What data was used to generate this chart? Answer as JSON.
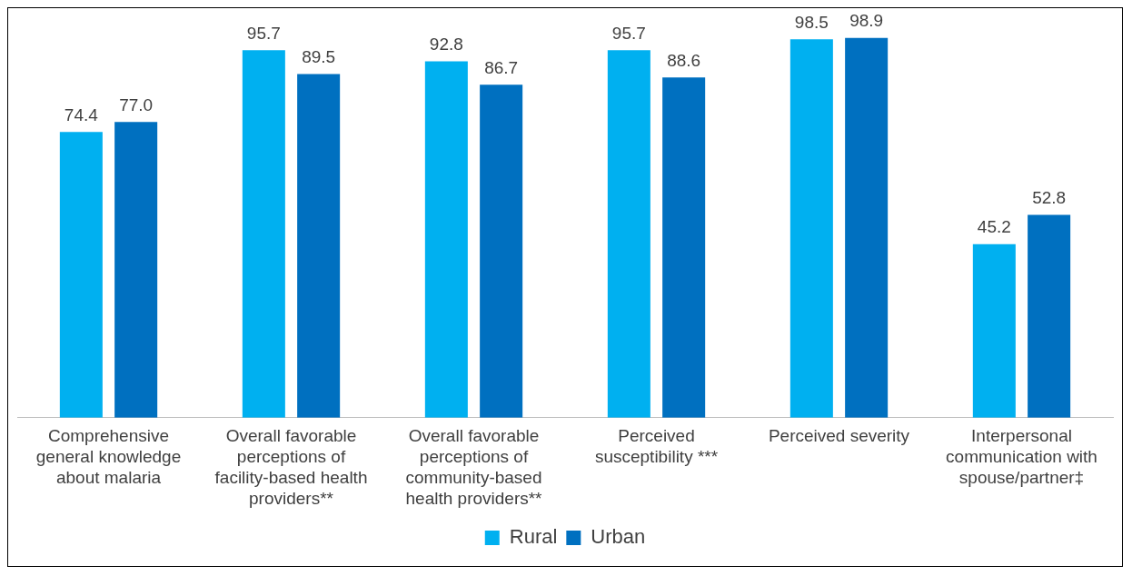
{
  "chart_data": {
    "type": "bar",
    "categories": [
      "Comprehensive general knowledge about malaria",
      "Overall favorable perceptions of facility-based health providers**",
      "Overall favorable perceptions of community-based health providers**",
      "Perceived susceptibility ***",
      "Perceived severity",
      "Interpersonal communication with spouse/partner‡"
    ],
    "series": [
      {
        "name": "Rural",
        "color": "#00b0f0",
        "values": [
          74.4,
          95.7,
          92.8,
          95.7,
          98.5,
          45.2
        ],
        "value_labels": [
          "74.4",
          "95.7",
          "92.8",
          "95.7",
          "98.5",
          "45.2"
        ]
      },
      {
        "name": "Urban",
        "color": "#0070c0",
        "values": [
          77.0,
          89.5,
          86.7,
          88.6,
          98.9,
          52.8
        ],
        "value_labels": [
          "77.0",
          "89.5",
          "86.7",
          "88.6",
          "98.9",
          "52.8"
        ]
      }
    ],
    "legend": "bottom",
    "grid": false,
    "tick_labels": "x"
  }
}
